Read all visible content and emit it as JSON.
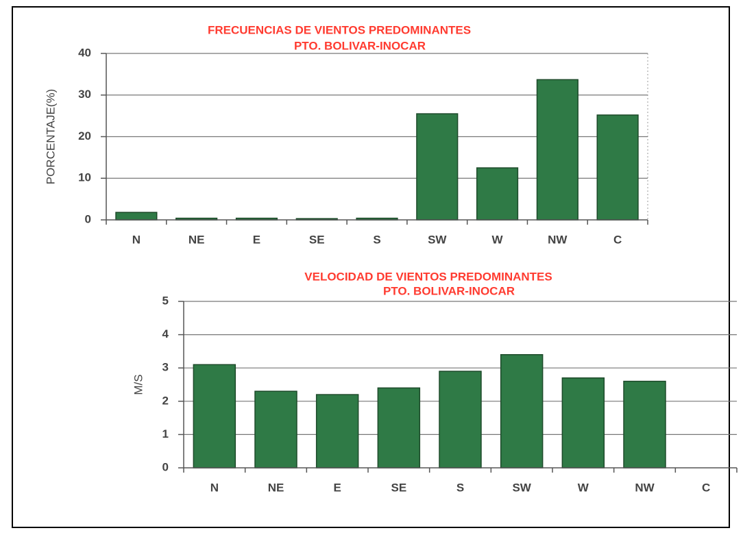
{
  "chart_data": [
    {
      "type": "bar",
      "title": "FRECUENCIAS DE VIENTOS PREDOMINANTES",
      "subtitle": "PTO. BOLIVAR-INOCAR",
      "y_label": "PORCENTAJE(%)",
      "categories": [
        "N",
        "NE",
        "E",
        "SE",
        "S",
        "SW",
        "W",
        "NW",
        "C"
      ],
      "values": [
        1.8,
        0.4,
        0.4,
        0.3,
        0.4,
        25.5,
        12.5,
        33.7,
        25.2
      ],
      "color": "#2f7a46",
      "ylim": [
        0,
        40
      ],
      "yticks": [
        0,
        10,
        20,
        30,
        40
      ],
      "grid": true
    },
    {
      "type": "bar",
      "title": "VELOCIDAD DE VIENTOS PREDOMINANTES",
      "subtitle": "PTO. BOLIVAR-INOCAR",
      "y_label": "M/S",
      "categories": [
        "N",
        "NE",
        "E",
        "SE",
        "S",
        "SW",
        "W",
        "NW",
        "C"
      ],
      "values": [
        3.1,
        2.3,
        2.2,
        2.4,
        2.9,
        3.4,
        2.7,
        2.6,
        null
      ],
      "color": "#2f7a46",
      "ylim": [
        0,
        5
      ],
      "yticks": [
        0,
        1,
        2,
        3,
        4,
        5
      ],
      "grid": true
    }
  ]
}
